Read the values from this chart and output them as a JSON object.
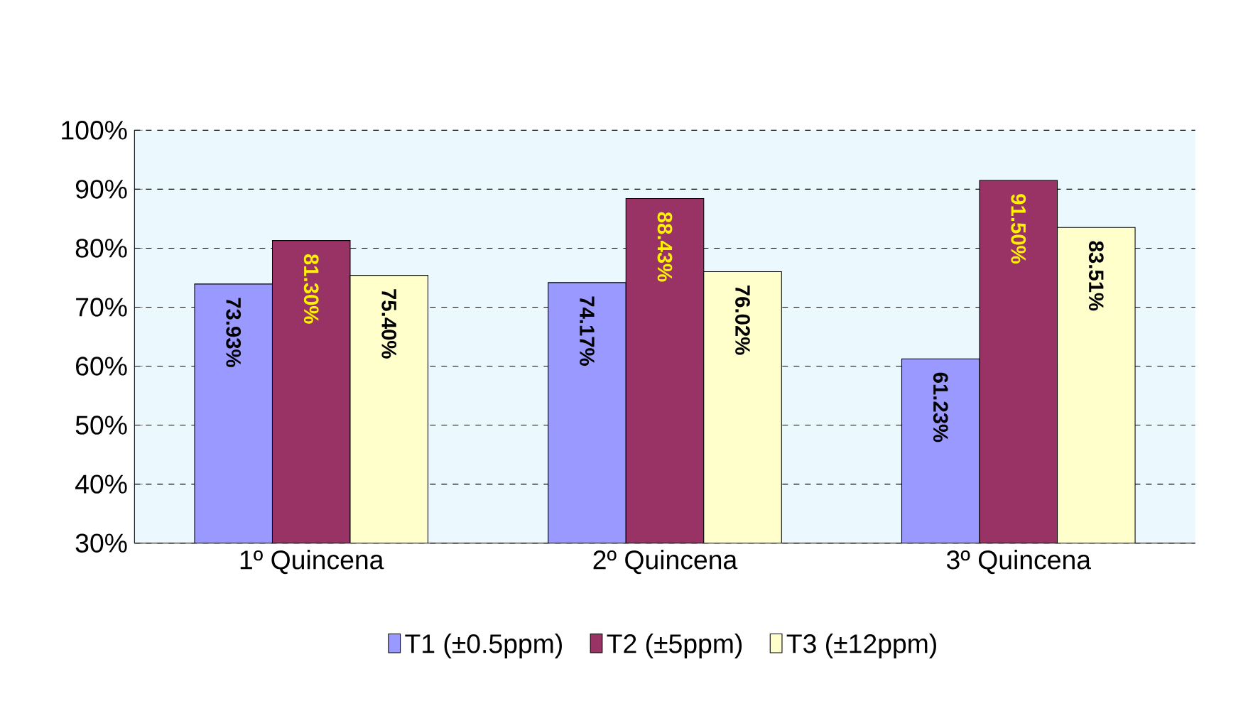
{
  "chart_data": {
    "type": "bar",
    "categories": [
      "1º Quincena",
      "2º Quincena",
      "3º Quincena"
    ],
    "series": [
      {
        "name": "T1 (±0.5ppm)",
        "color": "#9999ff",
        "values": [
          73.93,
          74.17,
          61.23
        ],
        "value_labels": [
          "73.93%",
          "74.17%",
          "61.23%"
        ]
      },
      {
        "name": "T2 (±5ppm)",
        "color": "#993366",
        "values": [
          81.3,
          88.43,
          91.5
        ],
        "value_labels": [
          "81.30%",
          "88.43%",
          "91.50%"
        ]
      },
      {
        "name": "T3 (±12ppm)",
        "color": "#ffffcc",
        "values": [
          75.4,
          76.02,
          83.51
        ],
        "value_labels": [
          "75.40%",
          "76.02%",
          "83.51%"
        ]
      }
    ],
    "ylim": [
      30,
      100
    ],
    "yticks": [
      {
        "value": 30,
        "label": "30%"
      },
      {
        "value": 40,
        "label": "40%"
      },
      {
        "value": 50,
        "label": "50%"
      },
      {
        "value": 60,
        "label": "60%"
      },
      {
        "value": 70,
        "label": "70%"
      },
      {
        "value": 80,
        "label": "80%"
      },
      {
        "value": 90,
        "label": "90%"
      },
      {
        "value": 100,
        "label": "100%"
      }
    ],
    "grid": "y",
    "legend": "bottom"
  }
}
